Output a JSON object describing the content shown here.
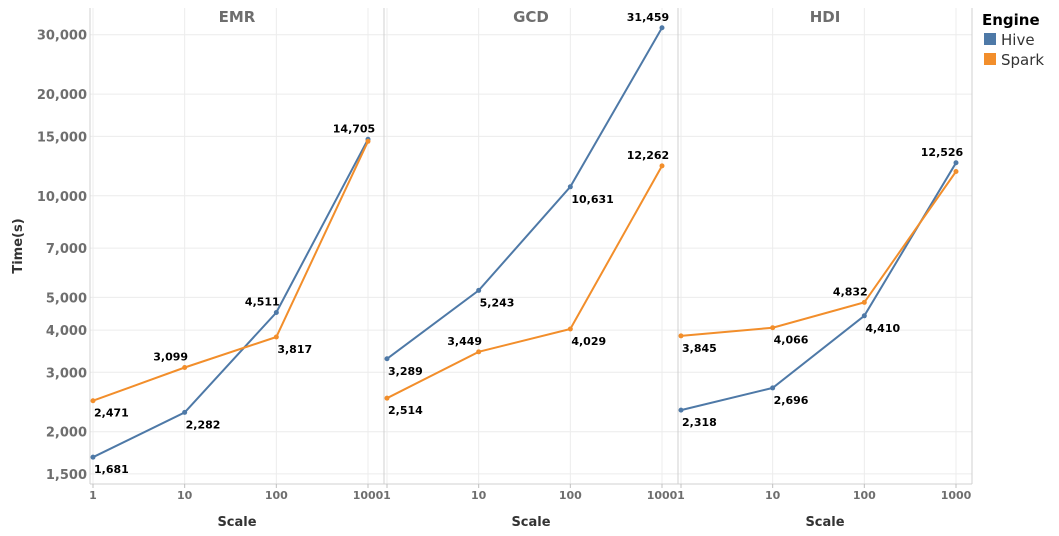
{
  "chart_data": {
    "type": "line",
    "y_scale": "log",
    "ylabel": "Time(s)",
    "xlabel": "Scale",
    "x_scale": "log",
    "x": [
      1,
      10,
      100,
      1000
    ],
    "x_tick_labels": [
      "1",
      "10",
      "100",
      "1000"
    ],
    "y_ticks": [
      1500,
      2000,
      3000,
      4000,
      5000,
      7000,
      10000,
      15000,
      20000,
      30000
    ],
    "y_tick_labels": [
      "1,500",
      "2,000",
      "3,000",
      "4,000",
      "5,000",
      "7,000",
      "10,000",
      "15,000",
      "20,000",
      "30,000"
    ],
    "ylim": [
      1400,
      36000
    ],
    "grid": true,
    "legend": {
      "title": "Engine",
      "position": "top-right",
      "entries": [
        {
          "name": "Hive",
          "color": "#4e79a7"
        },
        {
          "name": "Spark",
          "color": "#f28e2b"
        }
      ]
    },
    "facets": [
      {
        "title": "EMR",
        "series": [
          {
            "name": "Hive",
            "color": "#4e79a7",
            "values": [
              1681,
              2282,
              4511,
              14705
            ],
            "labels": [
              "1,681",
              "2,282",
              "4,511",
              "14,705"
            ],
            "label_pos": [
              "below",
              "below",
              "above",
              "above"
            ]
          },
          {
            "name": "Spark",
            "color": "#f28e2b",
            "values": [
              2471,
              3099,
              3817,
              14500
            ],
            "labels": [
              "2,471",
              "3,099",
              "3,817",
              ""
            ],
            "label_pos": [
              "below",
              "above",
              "below",
              "none"
            ]
          }
        ]
      },
      {
        "title": "GCD",
        "series": [
          {
            "name": "Hive",
            "color": "#4e79a7",
            "values": [
              3289,
              5243,
              10631,
              31459
            ],
            "labels": [
              "3,289",
              "5,243",
              "10,631",
              "31,459"
            ],
            "label_pos": [
              "below",
              "below",
              "below",
              "above"
            ]
          },
          {
            "name": "Spark",
            "color": "#f28e2b",
            "values": [
              2514,
              3449,
              4029,
              12262
            ],
            "labels": [
              "2,514",
              "3,449",
              "4,029",
              "12,262"
            ],
            "label_pos": [
              "below",
              "above",
              "below",
              "above"
            ]
          }
        ]
      },
      {
        "title": "HDI",
        "series": [
          {
            "name": "Hive",
            "color": "#4e79a7",
            "values": [
              2318,
              2696,
              4410,
              12526
            ],
            "labels": [
              "2,318",
              "2,696",
              "4,410",
              "12,526"
            ],
            "label_pos": [
              "below",
              "below",
              "below",
              "above"
            ]
          },
          {
            "name": "Spark",
            "color": "#f28e2b",
            "values": [
              3845,
              4066,
              4832,
              11800
            ],
            "labels": [
              "3,845",
              "4,066",
              "4,832",
              ""
            ],
            "label_pos": [
              "below",
              "below",
              "above",
              "none"
            ]
          }
        ]
      }
    ]
  }
}
